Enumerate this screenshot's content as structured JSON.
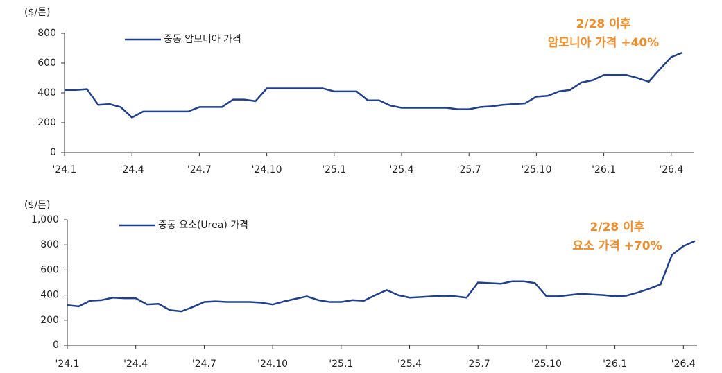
{
  "chart_data": [
    {
      "type": "line",
      "unit": "($/톤)",
      "categories": [
        "'24.1",
        null,
        null,
        null,
        null,
        null,
        "'24.4",
        null,
        null,
        null,
        null,
        null,
        "'24.7",
        null,
        null,
        null,
        null,
        null,
        "'24.10",
        null,
        null,
        null,
        null,
        null,
        "'25.1",
        null,
        null,
        null,
        null,
        null,
        "'25.4",
        null,
        null,
        null,
        null,
        null,
        "'25.7",
        null,
        null,
        null,
        null,
        null,
        "'25.10",
        null,
        null,
        null,
        null,
        null,
        "'26.1",
        null,
        null,
        null,
        null,
        null,
        "'26.4",
        null
      ],
      "series": [
        {
          "name": "중동 암모니아 가격",
          "color": "#1f3f8f",
          "values": [
            420,
            420,
            425,
            320,
            325,
            305,
            235,
            275,
            275,
            275,
            275,
            275,
            305,
            305,
            305,
            355,
            355,
            345,
            430,
            430,
            430,
            430,
            430,
            430,
            410,
            410,
            410,
            350,
            350,
            315,
            300,
            300,
            300,
            300,
            300,
            290,
            290,
            305,
            310,
            320,
            325,
            330,
            375,
            380,
            410,
            420,
            470,
            485,
            520,
            520,
            520,
            500,
            475,
            560,
            640,
            670
          ]
        }
      ],
      "ylim": [
        0,
        800
      ],
      "yticks": [
        0,
        200,
        400,
        600,
        800
      ],
      "annotation": [
        "2/28 이후",
        "암모니아 가격 +40%"
      ],
      "annotation_color": "#f28c28"
    },
    {
      "type": "line",
      "unit": "($/톤)",
      "categories": [
        "'24.1",
        null,
        null,
        null,
        null,
        null,
        "'24.4",
        null,
        null,
        null,
        null,
        null,
        "'24.7",
        null,
        null,
        null,
        null,
        null,
        "'24.10",
        null,
        null,
        null,
        null,
        null,
        "'25.1",
        null,
        null,
        null,
        null,
        null,
        "'25.4",
        null,
        null,
        null,
        null,
        null,
        "'25.7",
        null,
        null,
        null,
        null,
        null,
        "'25.10",
        null,
        null,
        null,
        null,
        null,
        "'26.1",
        null,
        null,
        null,
        null,
        null,
        "'26.4",
        null
      ],
      "series": [
        {
          "name": "중동 요소(Urea) 가격",
          "color": "#1f3f8f",
          "values": [
            320,
            310,
            355,
            360,
            380,
            375,
            375,
            325,
            330,
            280,
            270,
            305,
            345,
            350,
            345,
            345,
            345,
            340,
            325,
            350,
            370,
            390,
            360,
            345,
            345,
            360,
            355,
            400,
            440,
            400,
            380,
            385,
            390,
            395,
            390,
            380,
            500,
            495,
            490,
            510,
            510,
            495,
            390,
            390,
            400,
            410,
            405,
            400,
            390,
            395,
            420,
            450,
            485,
            720,
            790,
            830
          ]
        }
      ],
      "ylim": [
        0,
        1000
      ],
      "yticks": [
        0,
        200,
        400,
        600,
        800,
        {
          "value": 1000,
          "label": "1,000"
        }
      ],
      "annotation": [
        "2/28 이후",
        "요소 가격 +70%"
      ],
      "annotation_color": "#f28c28"
    }
  ]
}
